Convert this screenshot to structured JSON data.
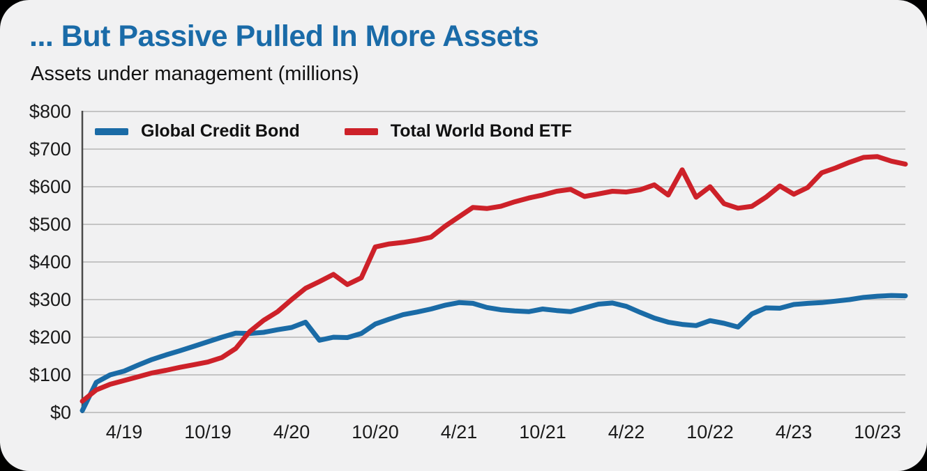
{
  "card": {
    "title": "... But Passive Pulled In More Assets",
    "subtitle": "Assets under management (millions)"
  },
  "colors": {
    "title": "#1a6ba8",
    "background": "#f1f1f2",
    "outer_background": "#000000",
    "grid": "#b5b5b5",
    "axis": "#4a4a4a",
    "text": "#1a1a1a",
    "series_blue": "#1a6ba6",
    "series_red": "#cd2129"
  },
  "chart_data": {
    "type": "line",
    "title": "... But Passive Pulled In More Assets",
    "subtitle": "Assets under management (millions)",
    "ylabel": "Assets under management ($ millions)",
    "ylim": [
      0,
      800
    ],
    "y_ticks": [
      "$0",
      "$100",
      "$200",
      "$300",
      "$400",
      "$500",
      "$600",
      "$700",
      "$800"
    ],
    "grid": "horizontal",
    "legend_position": "top-left-inside",
    "x_months": [
      "1/19",
      "2/19",
      "3/19",
      "4/19",
      "5/19",
      "6/19",
      "7/19",
      "8/19",
      "9/19",
      "10/19",
      "11/19",
      "12/19",
      "1/20",
      "2/20",
      "3/20",
      "4/20",
      "5/20",
      "6/20",
      "7/20",
      "8/20",
      "9/20",
      "10/20",
      "11/20",
      "12/20",
      "1/21",
      "2/21",
      "3/21",
      "4/21",
      "5/21",
      "6/21",
      "7/21",
      "8/21",
      "9/21",
      "10/21",
      "11/21",
      "12/21",
      "1/22",
      "2/22",
      "3/22",
      "4/22",
      "5/22",
      "6/22",
      "7/22",
      "8/22",
      "9/22",
      "10/22",
      "11/22",
      "12/22",
      "1/23",
      "2/23",
      "3/23",
      "4/23",
      "5/23",
      "6/23",
      "7/23",
      "8/23",
      "9/23",
      "10/23",
      "11/23",
      "12/23"
    ],
    "x_tick_labels": [
      {
        "month": "4/19",
        "index": 3
      },
      {
        "month": "10/19",
        "index": 9
      },
      {
        "month": "4/20",
        "index": 15
      },
      {
        "month": "10/20",
        "index": 21
      },
      {
        "month": "4/21",
        "index": 27
      },
      {
        "month": "10/21",
        "index": 33
      },
      {
        "month": "4/22",
        "index": 39
      },
      {
        "month": "10/22",
        "index": 45
      },
      {
        "month": "4/23",
        "index": 51
      },
      {
        "month": "10/23",
        "index": 57
      }
    ],
    "series": [
      {
        "name": "Global Credit Bond",
        "color": "#1a6ba6",
        "values": [
          5,
          80,
          100,
          110,
          126,
          141,
          153,
          164,
          176,
          188,
          200,
          211,
          210,
          213,
          220,
          226,
          240,
          192,
          200,
          199,
          210,
          235,
          248,
          260,
          267,
          275,
          285,
          292,
          290,
          279,
          273,
          270,
          268,
          275,
          271,
          268,
          278,
          288,
          291,
          282,
          266,
          251,
          240,
          234,
          231,
          244,
          237,
          227,
          262,
          278,
          277,
          287,
          290,
          292,
          296,
          300,
          306,
          309,
          311,
          310
        ]
      },
      {
        "name": "Total World Bond ETF",
        "color": "#cd2129",
        "values": [
          30,
          60,
          75,
          85,
          95,
          105,
          112,
          120,
          127,
          134,
          146,
          170,
          215,
          245,
          268,
          300,
          330,
          348,
          367,
          340,
          358,
          440,
          448,
          452,
          458,
          466,
          495,
          520,
          545,
          542,
          548,
          560,
          570,
          578,
          588,
          593,
          574,
          581,
          588,
          586,
          592,
          605,
          578,
          645,
          572,
          600,
          555,
          543,
          548,
          572,
          602,
          580,
          598,
          637,
          650,
          665,
          678,
          680,
          668,
          660
        ]
      }
    ]
  }
}
